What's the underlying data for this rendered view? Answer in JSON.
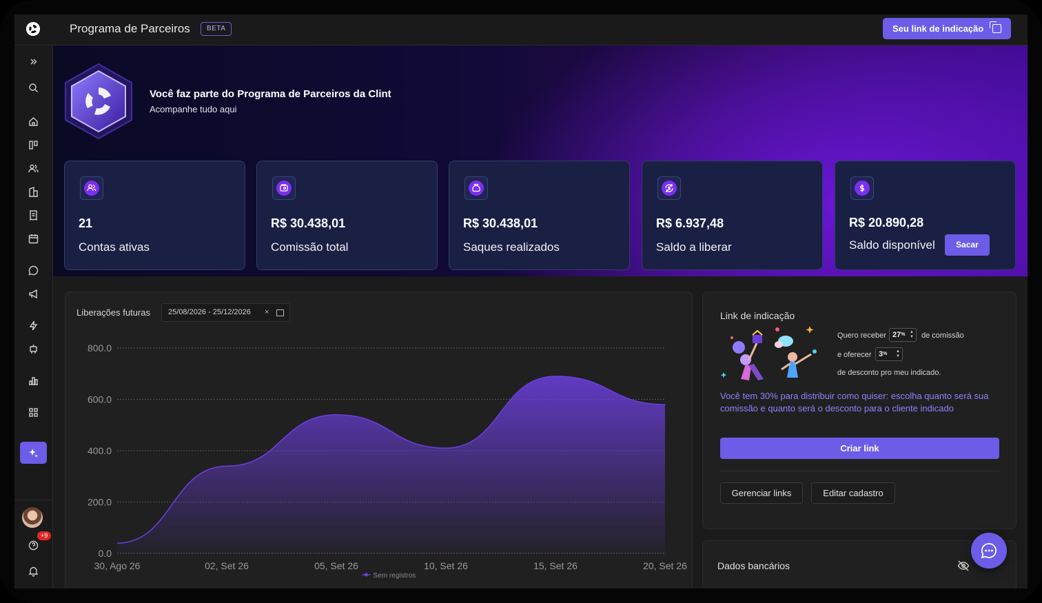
{
  "header": {
    "title": "Programa de Parceiros",
    "beta": "BETA",
    "referral_button": "Seu link de indicação"
  },
  "sidebar": {
    "icons": [
      "expand-icon",
      "search-icon",
      "home-icon",
      "kanban-icon",
      "users-icon",
      "building-icon",
      "invoice-icon",
      "calendar-icon",
      "chat-icon",
      "megaphone-icon",
      "bolt-icon",
      "robot-icon",
      "bar-chart-icon",
      "apps-icon",
      "sparkles-icon"
    ],
    "notification_badge": "+9"
  },
  "hero": {
    "title": "Você faz parte do Programa de Parceiros da Clint",
    "subtitle": "Acompanhe tudo aqui"
  },
  "stats": [
    {
      "value": "21",
      "label": "Contas ativas",
      "icon": "users-icon"
    },
    {
      "value": "R$ 30.438,01",
      "label": "Comissão total",
      "icon": "wallet-icon"
    },
    {
      "value": "R$ 30.438,01",
      "label": "Saques realizados",
      "icon": "money-bag-icon"
    },
    {
      "value": "R$ 6.937,48",
      "label": "Saldo a liberar",
      "icon": "cycle-dollar-icon"
    },
    {
      "value": "R$ 20.890,28",
      "label": "Saldo disponível",
      "icon": "dollar-icon",
      "action": "Sacar"
    }
  ],
  "chart_panel": {
    "title": "Liberações futuras",
    "date_range": "25/08/2026 - 25/12/2026"
  },
  "chart_data": {
    "type": "area",
    "x": [
      "30, Ago 26",
      "02, Set 26",
      "05, Set 26",
      "10, Set 26",
      "15, Set 26",
      "20, Set 26"
    ],
    "y_ticks": [
      "0.0",
      "200.0",
      "400.0",
      "600.0",
      "800.0"
    ],
    "ylim": [
      0,
      800
    ],
    "series": [
      {
        "name": "Sem registros",
        "values": [
          40,
          340,
          540,
          410,
          690,
          580
        ]
      }
    ],
    "legend_position": "bottom-center",
    "color": "#6c3fe0",
    "grid": true
  },
  "link_panel": {
    "title": "Link de indicação",
    "receive_prefix": "Quero receber",
    "receive_value": "27",
    "receive_unit": "%",
    "receive_suffix": "de comissão",
    "offer_prefix": "e oferecer",
    "offer_value": "3",
    "offer_unit": "%",
    "offer_suffix": "de desconto pro meu indicado.",
    "info": "Você tem 30% para distribuir como quiser: escolha quanto será sua comissão e quanto será o desconto para o cliente indicado",
    "create_button": "Criar link",
    "manage_button": "Gerenciar links",
    "edit_button": "Editar cadastro"
  },
  "bank_panel": {
    "title": "Dados bancários"
  },
  "colors": {
    "accent": "#6c5ce7",
    "card_bg": "#1a2044",
    "panel_bg": "#202020",
    "info_text": "#8e83ff"
  }
}
